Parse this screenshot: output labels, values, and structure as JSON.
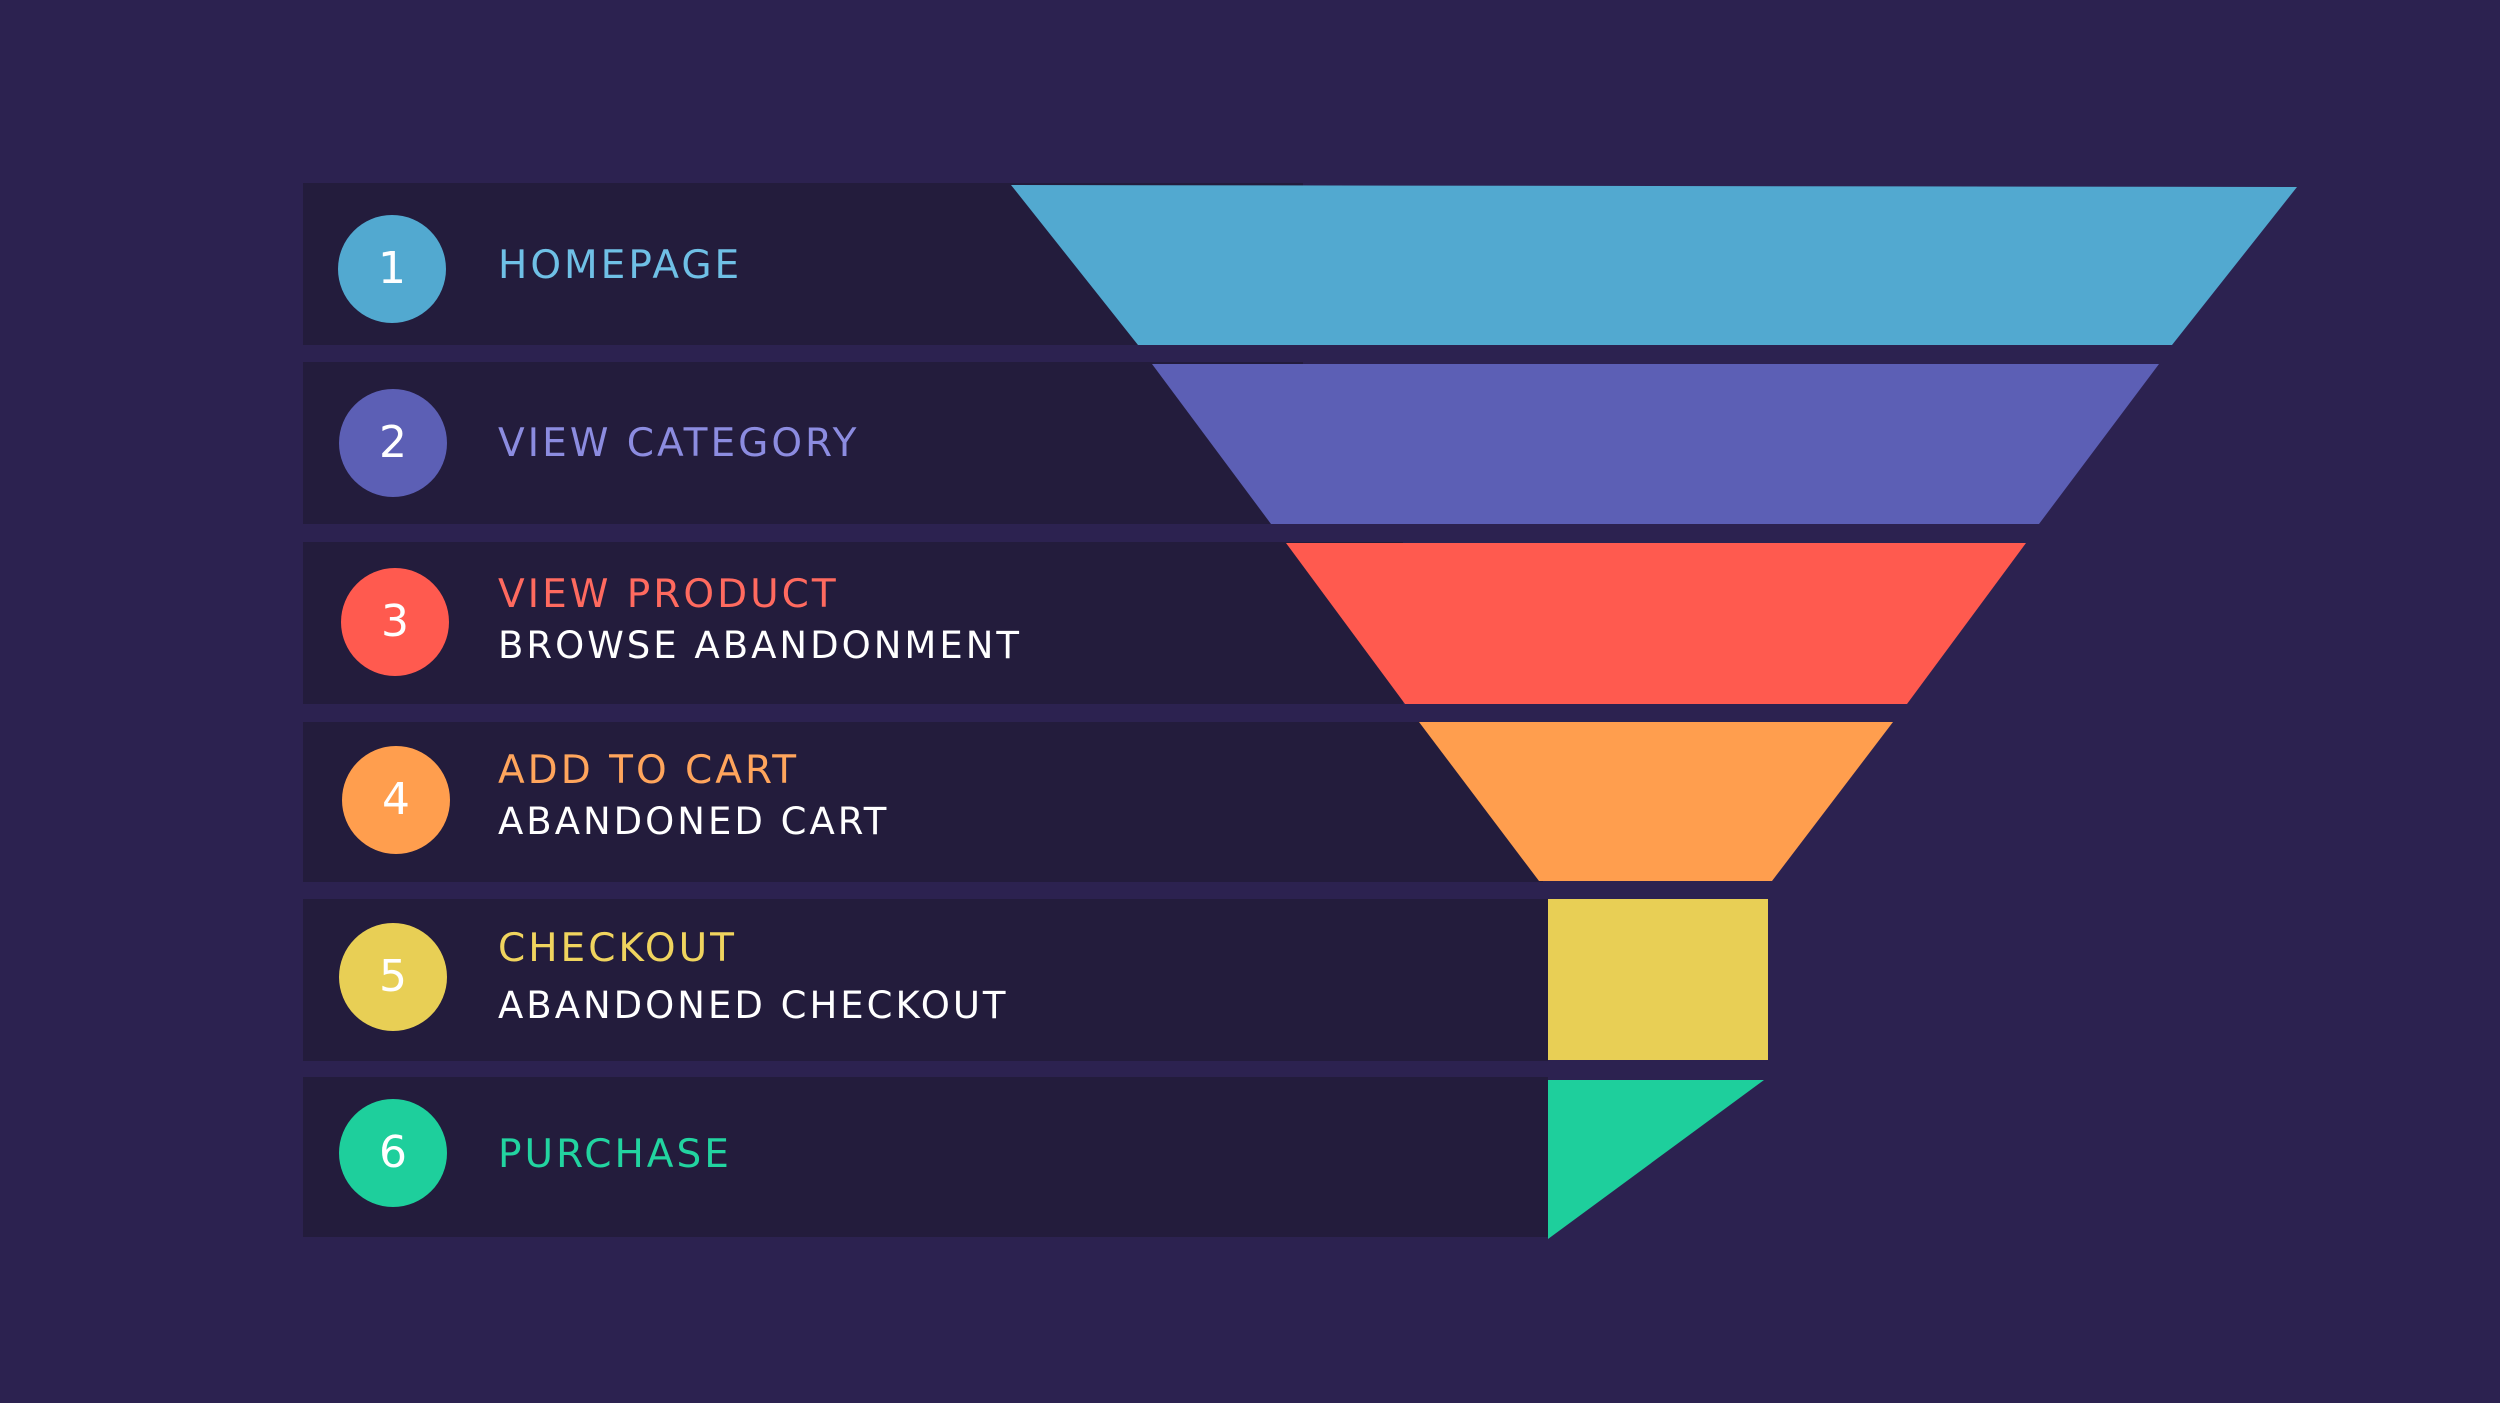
{
  "stages": [
    {
      "number": "1",
      "title": "HOMEPAGE",
      "subtitle": "",
      "color": "#52a9d0"
    },
    {
      "number": "2",
      "title": "VIEW CATEGORY",
      "subtitle": "",
      "color": "#5c5fb5"
    },
    {
      "number": "3",
      "title": "VIEW PRODUCT",
      "subtitle": "BROWSE ABANDONMENT",
      "color": "#ff5a4f"
    },
    {
      "number": "4",
      "title": "ADD TO CART",
      "subtitle": "ABANDONED CART",
      "color": "#ff9e4e"
    },
    {
      "number": "5",
      "title": "CHECKOUT",
      "subtitle": "ABANDONED CHECKOUT",
      "color": "#e8cf55"
    },
    {
      "number": "6",
      "title": "PURCHASE",
      "subtitle": "",
      "color": "#1ecf9c"
    }
  ]
}
